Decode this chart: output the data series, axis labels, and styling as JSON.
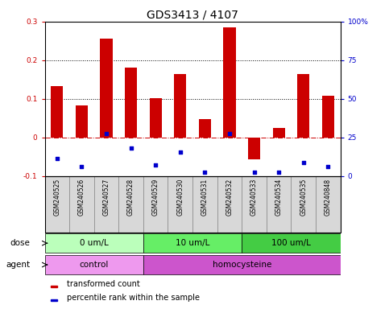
{
  "title": "GDS3413 / 4107",
  "samples": [
    "GSM240525",
    "GSM240526",
    "GSM240527",
    "GSM240528",
    "GSM240529",
    "GSM240530",
    "GSM240531",
    "GSM240532",
    "GSM240533",
    "GSM240534",
    "GSM240535",
    "GSM240848"
  ],
  "red_values": [
    0.133,
    0.082,
    0.255,
    0.18,
    0.102,
    0.165,
    0.048,
    0.285,
    -0.058,
    0.025,
    0.165,
    0.108
  ],
  "blue_values": [
    -0.055,
    -0.075,
    0.01,
    -0.028,
    -0.072,
    -0.038,
    -0.09,
    0.01,
    -0.09,
    -0.09,
    -0.065,
    -0.075
  ],
  "dose_groups": [
    {
      "label": "0 um/L",
      "start": 0,
      "end": 4,
      "color": "#bbffbb"
    },
    {
      "label": "10 um/L",
      "start": 4,
      "end": 8,
      "color": "#66ee66"
    },
    {
      "label": "100 um/L",
      "start": 8,
      "end": 12,
      "color": "#44cc44"
    }
  ],
  "agent_groups": [
    {
      "label": "control",
      "start": 0,
      "end": 4,
      "color": "#ee99ee"
    },
    {
      "label": "homocysteine",
      "start": 4,
      "end": 12,
      "color": "#cc55cc"
    }
  ],
  "ylim": [
    -0.1,
    0.3
  ],
  "right_ylim": [
    0,
    100
  ],
  "yticks": [
    -0.1,
    0.0,
    0.1,
    0.2,
    0.3
  ],
  "yticklabels": [
    "-0.1",
    "0",
    "0.1",
    "0.2",
    "0.3"
  ],
  "right_yticks": [
    0,
    25,
    50,
    75,
    100
  ],
  "right_yticklabels": [
    "0",
    "25",
    "50",
    "75",
    "100%"
  ],
  "dotted_lines": [
    0.1,
    0.2
  ],
  "red_color": "#cc0000",
  "blue_color": "#0000cc",
  "bar_width": 0.5,
  "legend_red": "transformed count",
  "legend_blue": "percentile rank within the sample",
  "title_fontsize": 10,
  "tick_fontsize": 6.5,
  "label_fontsize": 7.5,
  "sample_fontsize": 5.5,
  "legend_fontsize": 7,
  "dose_label": "dose",
  "agent_label": "agent",
  "box_color": "#d8d8d8",
  "box_edge_color": "#888888"
}
